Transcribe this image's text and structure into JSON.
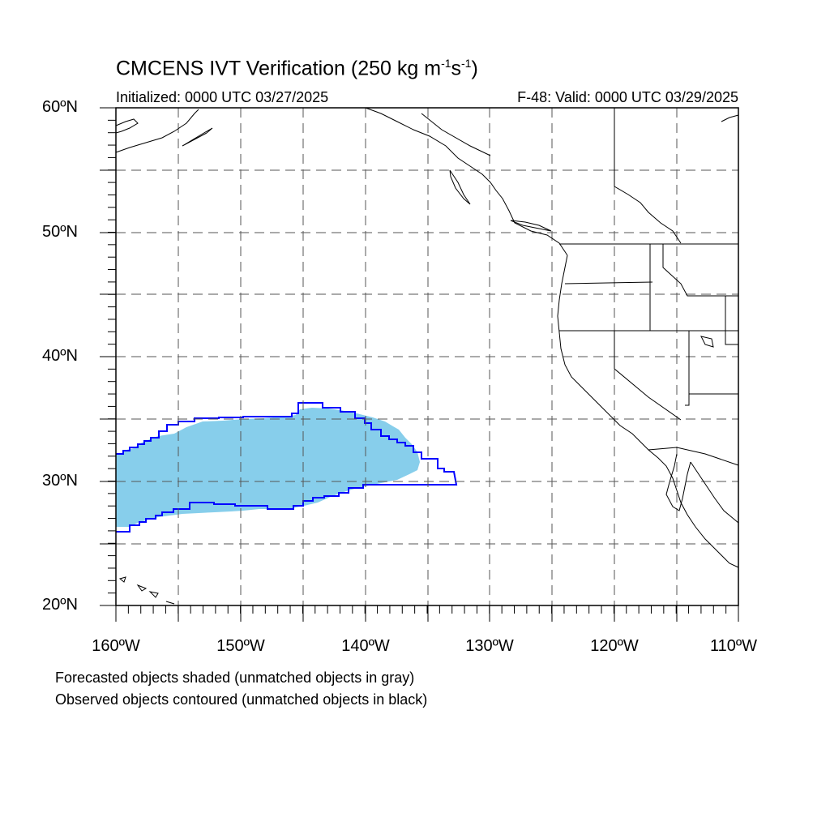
{
  "title_main": "CMCENS IVT Verification (250 kg m",
  "title_exp1": "-1",
  "title_mid": "s",
  "title_exp2": "-1",
  "title_end": ")",
  "initialized": "Initialized: 0000 UTC 03/27/2025",
  "valid": "F-48: Valid: 0000 UTC 03/29/2025",
  "lat_labels": [
    "60ºN",
    "50ºN",
    "40ºN",
    "30ºN",
    "20ºN"
  ],
  "lon_labels": [
    "160ºW",
    "150ºW",
    "140ºW",
    "130ºW",
    "120ºW",
    "110ºW"
  ],
  "notes": [
    "Forecasted objects shaded (unmatched objects in gray)",
    "Observed objects contoured (unmatched objects in black)"
  ],
  "map_extent": {
    "lon": [
      -160,
      -110
    ],
    "lat": [
      20,
      60
    ]
  },
  "forecast_object_color": "#87ceeb",
  "observed_contour_color": "#0000ff",
  "coastline_color": "#000000",
  "gridline_style": "dashed-gray"
}
